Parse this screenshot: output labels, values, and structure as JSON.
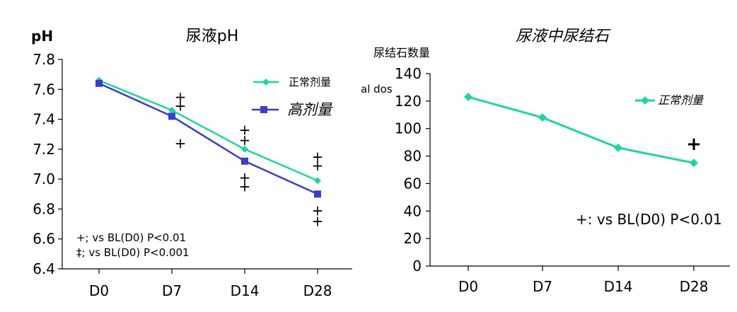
{
  "chart_data": [
    {
      "type": "line",
      "title": "尿液pH",
      "ylabel": "pH",
      "categories": [
        "D0",
        "D7",
        "D14",
        "D28"
      ],
      "ylim": [
        6.4,
        7.8
      ],
      "yticks": [
        "6.4",
        "6.6",
        "6.8",
        "7.0",
        "7.2",
        "7.4",
        "7.6",
        "7.8"
      ],
      "yticks_values": [
        6.4,
        6.6,
        6.8,
        7.0,
        7.2,
        7.4,
        7.6,
        7.8
      ],
      "series": [
        {
          "name": "正常剂量",
          "values": [
            7.66,
            7.46,
            7.2,
            6.99
          ],
          "color": "#1fd59e",
          "marker": "diamond"
        },
        {
          "name": "高剂量",
          "values": [
            7.64,
            7.42,
            7.12,
            6.9
          ],
          "color": "#3a3ec8",
          "marker": "square"
        }
      ],
      "significance_marks": [
        {
          "category": "D7",
          "y": 7.55,
          "text": "+"
        },
        {
          "category": "D7",
          "y": 7.49,
          "text": "+"
        },
        {
          "category": "D7",
          "y": 7.24,
          "text": "+"
        },
        {
          "category": "D14",
          "y": 7.33,
          "text": "+"
        },
        {
          "category": "D14",
          "y": 7.26,
          "text": "+"
        },
        {
          "category": "D14",
          "y": 7.01,
          "text": "+"
        },
        {
          "category": "D14",
          "y": 6.95,
          "text": "+"
        },
        {
          "category": "D28",
          "y": 7.15,
          "text": "+"
        },
        {
          "category": "D28",
          "y": 7.09,
          "text": "+"
        },
        {
          "category": "D28",
          "y": 6.79,
          "text": "+"
        },
        {
          "category": "D28",
          "y": 6.72,
          "text": "+"
        }
      ],
      "footnotes": [
        "+; vs BL(D0) P<0.01",
        "‡; vs BL(D0) P<0.001"
      ],
      "legend_position": "top-right",
      "grid": false
    },
    {
      "type": "line",
      "title": "尿液中尿结石",
      "ylabel": "尿结石数量",
      "categories": [
        "D0",
        "D7",
        "D14",
        "D28"
      ],
      "ylim": [
        0,
        140
      ],
      "yticks": [
        "0",
        "20",
        "40",
        "60",
        "80",
        "100",
        "120",
        "140"
      ],
      "yticks_values": [
        0,
        20,
        40,
        60,
        80,
        100,
        120,
        140
      ],
      "series": [
        {
          "name": "正常剂量",
          "values": [
            123,
            108,
            86,
            75
          ],
          "color": "#1fd59e",
          "marker": "diamond"
        }
      ],
      "significance_marks": [
        {
          "category": "D28",
          "y": 88,
          "text": "+"
        }
      ],
      "footnotes": [
        "+: vs BL(D0) P<0.01"
      ],
      "stray_text": "al dos",
      "legend_position": "top-right",
      "grid": false
    }
  ]
}
